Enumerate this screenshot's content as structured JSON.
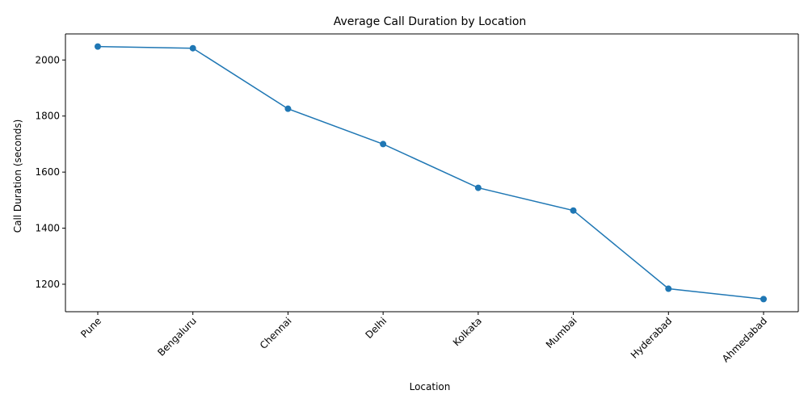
{
  "chart_data": {
    "type": "line",
    "title": "Average Call Duration by Location",
    "xlabel": "Location",
    "ylabel": "Call Duration (seconds)",
    "categories": [
      "Pune",
      "Bengaluru",
      "Chennai",
      "Delhi",
      "Kolkata",
      "Mumbai",
      "Hyderabad",
      "Ahmedabad"
    ],
    "series": [
      {
        "values": [
          2048,
          2042,
          1826,
          1700,
          1544,
          1463,
          1184,
          1147
        ]
      }
    ],
    "ylim": [
      1102,
      2093
    ],
    "yticks": [
      1200,
      1400,
      1600,
      1800,
      2000
    ],
    "x_tick_rotation": 45,
    "grid": false,
    "legend": "none",
    "colors": {
      "line": "#1f77b4",
      "marker": "#1f77b4",
      "axis": "#000000"
    },
    "marker": "circle"
  }
}
